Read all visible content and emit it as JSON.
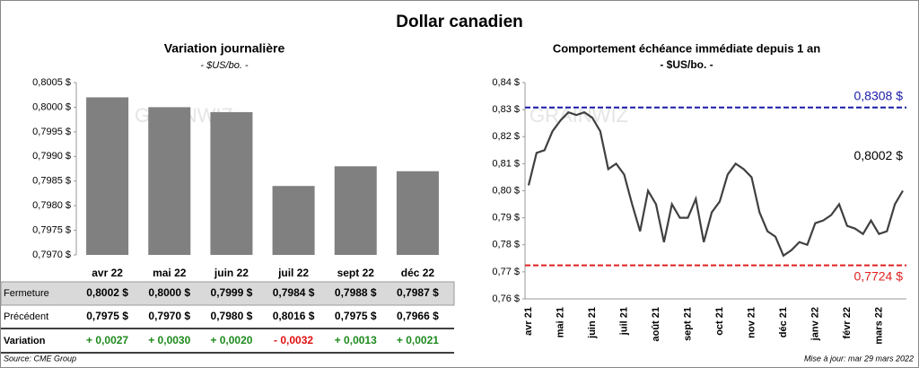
{
  "title": "Dollar canadien",
  "watermark": "GRAINWIZ",
  "chart_data": [
    {
      "type": "bar",
      "title": "Variation  journalière",
      "subtitle": "- $US/bo. -",
      "categories": [
        "avr 22",
        "mai 22",
        "juin 22",
        "juil 22",
        "sept 22",
        "déc 22"
      ],
      "values": [
        0.8002,
        0.8,
        0.7999,
        0.7984,
        0.7988,
        0.7987
      ],
      "color": "#808080",
      "ylim": [
        0.797,
        0.8005
      ],
      "yticks": [
        {
          "value": 0.797,
          "label": "0,7970 $"
        },
        {
          "value": 0.7975,
          "label": "0,7975 $"
        },
        {
          "value": 0.798,
          "label": "0,7980 $"
        },
        {
          "value": 0.7985,
          "label": "0,7985 $"
        },
        {
          "value": 0.799,
          "label": "0,7990 $"
        },
        {
          "value": 0.7995,
          "label": "0,7995 $"
        },
        {
          "value": 0.8,
          "label": "0,8000 $"
        },
        {
          "value": 0.8005,
          "label": "0,8005 $"
        }
      ]
    },
    {
      "type": "line",
      "title": "Comportement échéance immédiate depuis 1 an",
      "subtitle": "- $US/bo. -",
      "categories": [
        "avr 21",
        null,
        null,
        null,
        "mai 21",
        null,
        null,
        null,
        "juin 21",
        null,
        null,
        null,
        "juil 21",
        null,
        null,
        null,
        "août 21",
        null,
        null,
        null,
        "sept 21",
        null,
        null,
        null,
        "oct 21",
        null,
        null,
        null,
        "nov 21",
        null,
        null,
        null,
        "déc 21",
        null,
        null,
        null,
        "janv 22",
        null,
        null,
        null,
        "févr 22",
        null,
        null,
        null,
        "mars 22",
        null,
        null,
        null
      ],
      "series": [
        {
          "name": "Dollar canadien",
          "color": "#404040",
          "values": [
            0.802,
            0.814,
            0.815,
            0.822,
            0.826,
            0.829,
            0.828,
            0.829,
            0.827,
            0.822,
            0.808,
            0.81,
            0.806,
            0.795,
            0.785,
            0.8,
            0.795,
            0.781,
            0.795,
            0.79,
            0.79,
            0.797,
            0.781,
            0.792,
            0.796,
            0.806,
            0.81,
            0.808,
            0.805,
            0.792,
            0.785,
            0.783,
            0.776,
            0.778,
            0.781,
            0.78,
            0.788,
            0.789,
            0.791,
            0.795,
            0.787,
            0.786,
            0.784,
            0.789,
            0.784,
            0.785,
            0.795,
            0.8
          ]
        }
      ],
      "ylim": [
        0.76,
        0.84
      ],
      "yticks": [
        {
          "value": 0.76,
          "label": "0,76 $"
        },
        {
          "value": 0.77,
          "label": "0,77 $"
        },
        {
          "value": 0.78,
          "label": "0,78 $"
        },
        {
          "value": 0.79,
          "label": "0,79 $"
        },
        {
          "value": 0.8,
          "label": "0,80 $"
        },
        {
          "value": 0.81,
          "label": "0,81 $"
        },
        {
          "value": 0.82,
          "label": "0,82 $"
        },
        {
          "value": 0.83,
          "label": "0,83 $"
        },
        {
          "value": 0.84,
          "label": "0,84 $"
        }
      ],
      "reference_lines": [
        {
          "value": 0.8308,
          "label": "0,8308 $",
          "color": "#1a1aa8"
        },
        {
          "value": 0.7724,
          "label": "0,7724 $",
          "color": "#e02020"
        }
      ],
      "annotation": "0,8002 $"
    }
  ],
  "table": {
    "rows": [
      {
        "label": "Fermeture",
        "cells": [
          "0,8002  $",
          "0,8000  $",
          "0,7999  $",
          "0,7984  $",
          "0,7988  $",
          "0,7987  $"
        ]
      },
      {
        "label": "Précédent",
        "cells": [
          "0,7975  $",
          "0,7970  $",
          "0,7980  $",
          "0,8016  $",
          "0,7975  $",
          "0,7966  $"
        ]
      },
      {
        "label": "Variation",
        "cells": [
          "+ 0,0027",
          "+ 0,0030",
          "+ 0,0020",
          "- 0,0032",
          "+ 0,0013",
          "+ 0,0021"
        ],
        "colors": [
          "#1e8a1e",
          "#1e8a1e",
          "#1e8a1e",
          "#e01010",
          "#1e8a1e",
          "#1e8a1e"
        ]
      }
    ]
  },
  "source": "Source: CME Group",
  "updated": "Mise à jour: mar 29 mars 2022"
}
